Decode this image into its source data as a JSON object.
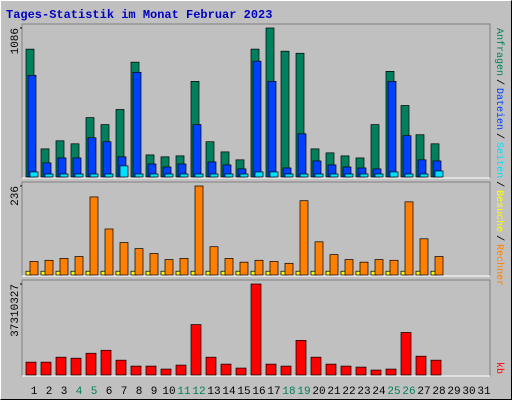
{
  "chart_data": {
    "type": "bar",
    "title": "Tages-Statistik im Monat Februar 2023",
    "categories": [
      "1",
      "2",
      "3",
      "4",
      "5",
      "6",
      "7",
      "8",
      "9",
      "10",
      "11",
      "12",
      "13",
      "14",
      "15",
      "16",
      "17",
      "18",
      "19",
      "20",
      "21",
      "22",
      "23",
      "24",
      "25",
      "26",
      "27",
      "28",
      "29",
      "30",
      "31"
    ],
    "weekend": [
      4,
      5,
      11,
      12,
      18,
      19,
      25,
      26
    ],
    "weekend_color": "#00805c",
    "legend_separator": "/",
    "panels": [
      {
        "ylim": [
          0,
          1086
        ],
        "yticks": [
          1086
        ],
        "series": [
          {
            "name": "Anfragen",
            "color": "#00805c",
            "values": [
              932,
              205,
              264,
              242,
              433,
              382,
              492,
              837,
              161,
              147,
              154,
              697,
              257,
              183,
              125,
              932,
              1086,
              917,
              902,
              205,
              176,
              154,
              139,
              382,
              770,
              521,
              308,
              242,
              null,
              null,
              null
            ]
          },
          {
            "name": "Dateien",
            "color": "#0040ff",
            "values": [
              741,
              103,
              139,
              139,
              286,
              257,
              147,
              763,
              95,
              73,
              95,
              382,
              110,
              88,
              59,
              844,
              697,
              66,
              315,
              117,
              88,
              73,
              66,
              59,
              697,
              301,
              125,
              117,
              null,
              null,
              null
            ]
          },
          {
            "name": "Seiten",
            "color": "#00e0ff",
            "values": [
              37,
              22,
              22,
              22,
              22,
              22,
              81,
              22,
              22,
              22,
              22,
              22,
              22,
              22,
              22,
              37,
              37,
              22,
              22,
              22,
              22,
              22,
              22,
              22,
              37,
              22,
              22,
              44,
              null,
              null,
              null
            ]
          }
        ]
      },
      {
        "ylim": [
          0,
          236
        ],
        "yticks": [
          236
        ],
        "series": [
          {
            "name": "Besuche",
            "color": "#ffff00",
            "values": [
              10,
              10,
              10,
              10,
              10,
              10,
              10,
              10,
              10,
              10,
              10,
              10,
              10,
              10,
              10,
              10,
              10,
              10,
              10,
              10,
              10,
              10,
              10,
              10,
              10,
              10,
              10,
              10,
              null,
              null,
              null
            ]
          },
          {
            "name": "Rechner",
            "color": "#ff8000",
            "values": [
              36,
              39,
              44,
              49,
              207,
              122,
              86,
              70,
              57,
              41,
              44,
              236,
              75,
              44,
              34,
              39,
              36,
              31,
              197,
              88,
              54,
              41,
              34,
              41,
              39,
              194,
              96,
              49,
              null,
              null,
              null
            ]
          }
        ]
      },
      {
        "ylim": [
          0,
          37310327
        ],
        "yticks": [
          37310327
        ],
        "series": [
          {
            "name": "kb",
            "color": "#ff0000",
            "values": [
              5270000,
              5270000,
              7300000,
              6890000,
              8920000,
              10140000,
              6080000,
              3650000,
              3650000,
              2430000,
              4060000,
              20680000,
              7300000,
              4460000,
              2840000,
              37310327,
              4460000,
              3650000,
              14190000,
              7300000,
              4460000,
              3650000,
              3240000,
              2030000,
              2430000,
              17440000,
              7710000,
              6080000,
              null,
              null,
              null
            ]
          }
        ]
      }
    ]
  }
}
